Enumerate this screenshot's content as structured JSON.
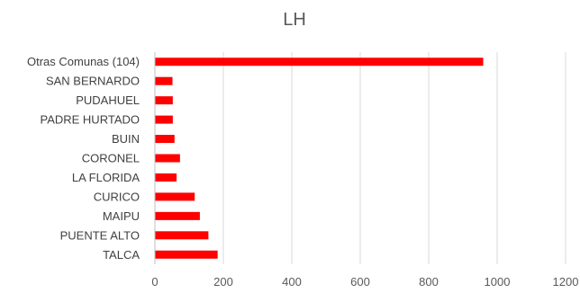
{
  "chart_data": {
    "type": "bar",
    "orientation": "horizontal",
    "title": "LH",
    "xlabel": "",
    "ylabel": "",
    "categories": [
      "Otras Comunas (104)",
      "SAN BERNARDO",
      "PUDAHUEL",
      "PADRE HURTADO",
      "BUIN",
      "CORONEL",
      "LA FLORIDA",
      "CURICO",
      "MAIPU",
      "PUENTE ALTO",
      "TALCA"
    ],
    "values": [
      958,
      50,
      51,
      51,
      56,
      72,
      62,
      115,
      130,
      155,
      182
    ],
    "xlim": [
      0,
      1200
    ],
    "xticks": [
      0,
      200,
      400,
      600,
      800,
      1000,
      1200
    ],
    "grid": "vertical",
    "legend": "none",
    "bar_color": "#ff0000"
  }
}
